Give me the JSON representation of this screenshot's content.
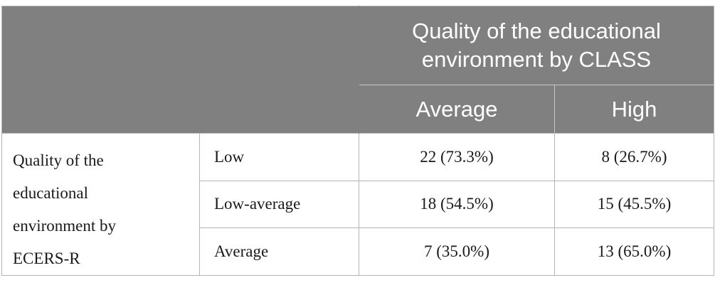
{
  "table": {
    "group_header": "Quality of the educational environment by CLASS",
    "group_header_lines": [
      "Quality of the educational",
      "environment by CLASS"
    ],
    "columns": [
      "Average",
      "High"
    ],
    "row_group_lines": [
      "Quality of the",
      "educational",
      "environment by",
      "ECERS-R"
    ],
    "rows": [
      {
        "label": "Low",
        "average": "22 (73.3%)",
        "high": "8 (26.7%)"
      },
      {
        "label": "Low-average",
        "average": "18 (54.5%)",
        "high": "15 (45.5%)"
      },
      {
        "label": "Average",
        "average": "7 (35.0%)",
        "high": "13 (65.0%)"
      }
    ]
  }
}
